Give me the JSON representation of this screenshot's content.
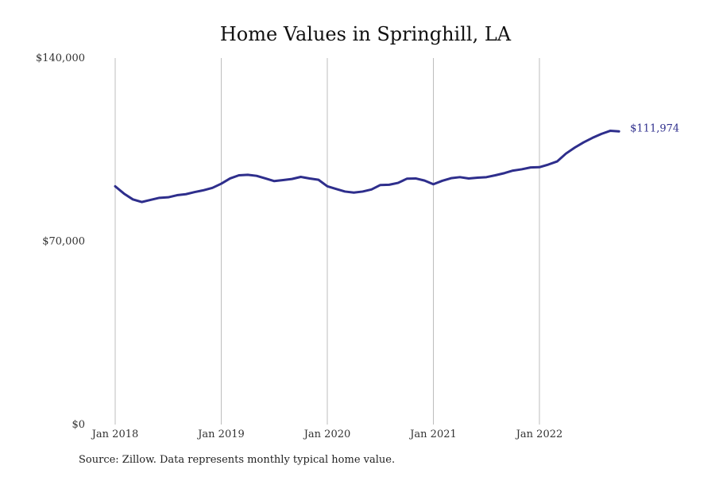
{
  "chart_data": {
    "type": "line",
    "title": "Home Values in Springhill, LA",
    "xlabel": "",
    "ylabel": "",
    "ylim": [
      0,
      140000
    ],
    "y_ticks": [
      {
        "value": 0,
        "label": "$0"
      },
      {
        "value": 70000,
        "label": "$70,000"
      },
      {
        "value": 140000,
        "label": "$140,000"
      }
    ],
    "x_ticks": [
      {
        "index": 0,
        "label": "Jan 2018"
      },
      {
        "index": 12,
        "label": "Jan 2019"
      },
      {
        "index": 24,
        "label": "Jan 2020"
      },
      {
        "index": 36,
        "label": "Jan 2021"
      },
      {
        "index": 48,
        "label": "Jan 2022"
      }
    ],
    "grid": "vertical",
    "series": [
      {
        "color": "#2e2e8c",
        "start": "2018-01",
        "end": "2022-10",
        "end_label": "$111,974",
        "values": [
          91000,
          88200,
          86000,
          85000,
          85800,
          86600,
          86800,
          87600,
          88000,
          88800,
          89500,
          90400,
          92000,
          94000,
          95200,
          95400,
          95000,
          94000,
          93000,
          93400,
          93800,
          94600,
          94000,
          93500,
          91000,
          90000,
          89000,
          88600,
          89000,
          89800,
          91500,
          91600,
          92300,
          93900,
          94000,
          93200,
          91800,
          93100,
          94100,
          94500,
          94000,
          94300,
          94500,
          95200,
          96000,
          97000,
          97500,
          98200,
          98300,
          99300,
          100500,
          103500,
          105800,
          107800,
          109500,
          111000,
          112200,
          111974
        ]
      }
    ]
  },
  "source": "Source: Zillow. Data represents monthly typical home value."
}
